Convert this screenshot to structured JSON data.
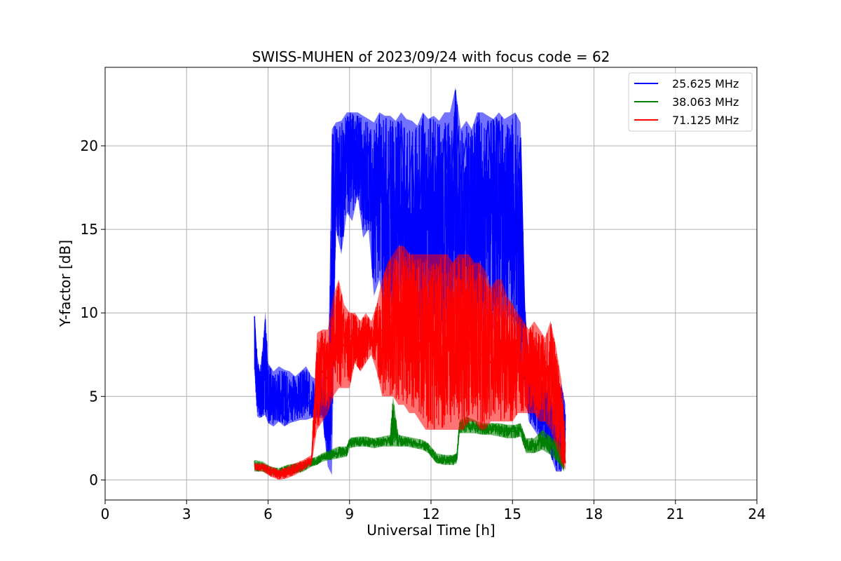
{
  "chart_data": {
    "type": "line",
    "title": "SWISS-MUHEN of 2023/09/24 with focus code = 62",
    "xlabel": "Universal Time [h]",
    "ylabel": "Y-factor [dB]",
    "xlim": [
      0,
      24
    ],
    "ylim": [
      -1.2,
      24.7
    ],
    "xticks": [
      0,
      3,
      6,
      9,
      12,
      15,
      18,
      21,
      24
    ],
    "yticks": [
      0,
      5,
      10,
      15,
      20
    ],
    "grid": true,
    "legend_position": "top-right",
    "series": [
      {
        "name": "25.625 MHz",
        "color": "#0000ff",
        "x": [
          5.5,
          5.6,
          5.7,
          5.8,
          5.9,
          6.0,
          6.2,
          6.4,
          6.6,
          6.8,
          7.0,
          7.2,
          7.4,
          7.6,
          7.8,
          8.0,
          8.2,
          8.35,
          8.5,
          8.7,
          8.9,
          9.1,
          9.3,
          9.5,
          9.7,
          9.9,
          10.1,
          10.3,
          10.5,
          10.7,
          10.9,
          11.1,
          11.3,
          11.5,
          11.7,
          11.9,
          12.1,
          12.3,
          12.5,
          12.7,
          12.9,
          13.1,
          13.3,
          13.5,
          13.7,
          13.9,
          14.1,
          14.3,
          14.5,
          14.7,
          14.9,
          15.1,
          15.3,
          15.45,
          15.6,
          15.8,
          16.0,
          16.2,
          16.4,
          16.6,
          16.8,
          16.95
        ],
        "y": [
          9.8,
          6.5,
          4.2,
          6.0,
          7.5,
          5.0,
          4.0,
          5.8,
          3.6,
          5.5,
          4.2,
          5.2,
          4.4,
          4.8,
          5.0,
          4.6,
          3.8,
          5.2,
          20.5,
          17.5,
          21.5,
          19.0,
          21.8,
          16.0,
          20.0,
          15.0,
          21.0,
          14.0,
          19.0,
          13.0,
          21.5,
          15.5,
          20.0,
          12.5,
          21.5,
          16.0,
          20.5,
          14.5,
          21.0,
          16.5,
          22.5,
          18.0,
          20.5,
          15.0,
          21.0,
          17.0,
          21.5,
          16.0,
          21.5,
          15.0,
          20.5,
          15.0,
          20.5,
          10.0,
          7.0,
          6.0,
          5.0,
          4.5,
          3.8,
          2.5,
          4.5,
          3.0
        ],
        "band_low": [
          6.5,
          3.8,
          3.7,
          3.8,
          3.9,
          3.4,
          3.2,
          3.5,
          3.2,
          3.4,
          3.5,
          3.6,
          3.6,
          3.7,
          3.7,
          3.7,
          0.8,
          0.3,
          15.0,
          13.5,
          16.0,
          15.5,
          17.0,
          14.5,
          15.0,
          11.0,
          12.0,
          10.0,
          11.0,
          9.5,
          12.0,
          10.0,
          11.0,
          8.0,
          9.0,
          9.0,
          10.0,
          8.0,
          9.5,
          9.0,
          10.0,
          10.0,
          9.5,
          9.0,
          9.5,
          9.0,
          10.0,
          9.0,
          10.0,
          9.0,
          10.0,
          9.0,
          6.0,
          5.5,
          3.5,
          3.0,
          2.5,
          2.0,
          1.5,
          0.5,
          0.5,
          1.5
        ],
        "band_high": [
          9.9,
          7.5,
          6.5,
          8.0,
          10.1,
          7.0,
          6.5,
          6.8,
          6.6,
          6.5,
          6.2,
          6.5,
          6.8,
          6.2,
          6.0,
          6.2,
          5.0,
          21.0,
          21.4,
          21.5,
          22.0,
          22.0,
          22.0,
          21.8,
          21.6,
          21.4,
          22.0,
          21.8,
          21.8,
          21.5,
          22.0,
          21.6,
          21.5,
          21.2,
          22.0,
          21.6,
          21.8,
          21.5,
          22.0,
          22.0,
          23.5,
          21.0,
          21.5,
          21.0,
          22.0,
          22.0,
          21.8,
          21.6,
          22.0,
          21.6,
          21.8,
          22.0,
          21.4,
          10.8,
          7.0,
          7.0,
          6.0,
          6.0,
          5.0,
          4.0,
          5.8,
          4.5
        ]
      },
      {
        "name": "38.063 MHz",
        "color": "#008000",
        "x": [
          5.5,
          5.8,
          6.1,
          6.4,
          6.7,
          7.0,
          7.3,
          7.6,
          7.8,
          8.0,
          8.3,
          8.6,
          8.9,
          9.0,
          9.3,
          9.6,
          9.9,
          10.2,
          10.5,
          10.6,
          10.8,
          11.1,
          11.4,
          11.7,
          11.9,
          12.2,
          12.5,
          12.8,
          12.95,
          13.05,
          13.3,
          13.6,
          13.9,
          14.2,
          14.5,
          14.8,
          15.1,
          15.3,
          15.5,
          15.8,
          16.1,
          16.4,
          16.7,
          16.9
        ],
        "y": [
          0.9,
          0.8,
          0.5,
          0.4,
          0.6,
          0.7,
          0.8,
          1.0,
          1.1,
          1.3,
          1.5,
          1.6,
          1.7,
          2.2,
          2.3,
          2.3,
          2.2,
          2.3,
          2.4,
          3.0,
          2.3,
          2.3,
          2.2,
          2.1,
          1.9,
          1.3,
          1.2,
          1.2,
          1.3,
          3.2,
          3.2,
          3.1,
          3.0,
          3.0,
          3.0,
          2.9,
          2.9,
          3.0,
          2.0,
          2.0,
          2.5,
          2.0,
          1.6,
          0.8
        ],
        "band_low": [
          0.5,
          0.5,
          0.3,
          0.2,
          0.3,
          0.4,
          0.5,
          0.8,
          0.9,
          1.1,
          1.2,
          1.3,
          1.4,
          1.9,
          2.0,
          2.0,
          1.9,
          2.0,
          2.0,
          2.0,
          2.0,
          2.0,
          1.9,
          1.8,
          1.6,
          1.0,
          0.9,
          0.9,
          1.0,
          2.8,
          2.8,
          2.8,
          2.7,
          2.7,
          2.6,
          2.5,
          2.5,
          2.6,
          1.6,
          1.6,
          1.8,
          1.5,
          1.0,
          0.5
        ],
        "band_high": [
          1.2,
          1.1,
          0.8,
          0.7,
          0.9,
          1.0,
          1.1,
          1.3,
          1.4,
          1.6,
          1.8,
          2.0,
          2.0,
          2.5,
          2.6,
          2.6,
          2.5,
          2.6,
          2.7,
          5.0,
          2.7,
          2.6,
          2.5,
          2.4,
          2.2,
          1.6,
          1.5,
          1.5,
          1.6,
          3.6,
          3.8,
          3.6,
          3.4,
          3.4,
          3.4,
          3.3,
          3.3,
          3.4,
          2.5,
          2.5,
          3.0,
          2.6,
          2.3,
          1.5
        ]
      },
      {
        "name": "71.125 MHz",
        "color": "#ff0000",
        "x": [
          5.5,
          5.8,
          6.1,
          6.4,
          6.7,
          7.0,
          7.3,
          7.6,
          7.8,
          8.0,
          8.2,
          8.4,
          8.6,
          8.8,
          9.0,
          9.2,
          9.4,
          9.6,
          9.8,
          10.0,
          10.2,
          10.4,
          10.6,
          10.8,
          11.0,
          11.2,
          11.4,
          11.6,
          11.8,
          12.0,
          12.2,
          12.4,
          12.6,
          12.8,
          13.0,
          13.2,
          13.4,
          13.6,
          13.8,
          14.0,
          14.2,
          14.4,
          14.6,
          14.8,
          15.0,
          15.2,
          15.4,
          15.6,
          15.8,
          16.0,
          16.2,
          16.4,
          16.6,
          16.8,
          16.95
        ],
        "y": [
          0.8,
          0.7,
          0.5,
          0.3,
          0.4,
          0.6,
          0.9,
          1.2,
          5.5,
          6.5,
          6.0,
          8.0,
          8.5,
          8.0,
          8.5,
          9.0,
          8.0,
          8.5,
          8.5,
          8.5,
          9.0,
          9.5,
          10.0,
          9.5,
          9.0,
          9.0,
          8.5,
          8.5,
          8.0,
          8.0,
          8.0,
          8.0,
          8.0,
          8.0,
          8.0,
          8.0,
          8.0,
          7.5,
          7.5,
          7.5,
          7.0,
          7.0,
          7.0,
          7.0,
          6.5,
          6.5,
          6.0,
          6.0,
          6.0,
          6.0,
          5.5,
          5.0,
          5.0,
          3.5,
          1.0
        ],
        "band_low": [
          0.6,
          0.5,
          0.2,
          0.0,
          0.1,
          0.3,
          0.6,
          0.9,
          3.0,
          3.5,
          4.0,
          5.0,
          5.5,
          5.5,
          5.5,
          7.0,
          6.5,
          7.0,
          7.5,
          6.5,
          5.0,
          5.0,
          5.0,
          4.5,
          4.5,
          4.0,
          4.0,
          3.5,
          3.0,
          3.0,
          3.0,
          3.0,
          3.0,
          3.0,
          3.0,
          3.0,
          3.5,
          3.5,
          3.0,
          3.0,
          3.5,
          3.5,
          3.5,
          3.5,
          3.5,
          4.0,
          4.0,
          4.0,
          4.0,
          3.5,
          3.5,
          3.0,
          2.0,
          1.0,
          0.6
        ],
        "band_high": [
          1.0,
          1.0,
          0.8,
          0.6,
          0.8,
          1.0,
          1.2,
          1.5,
          8.8,
          9.0,
          9.0,
          11.0,
          12.0,
          10.5,
          10.0,
          10.0,
          9.5,
          10.0,
          9.5,
          10.5,
          12.0,
          13.0,
          13.5,
          14.0,
          14.0,
          13.5,
          13.5,
          13.5,
          13.5,
          13.5,
          13.5,
          13.5,
          13.5,
          13.0,
          13.5,
          13.5,
          13.5,
          13.0,
          13.0,
          12.5,
          11.5,
          12.0,
          12.0,
          11.0,
          10.5,
          10.0,
          9.5,
          9.0,
          9.5,
          9.0,
          8.5,
          9.5,
          8.0,
          6.0,
          2.5
        ]
      }
    ]
  }
}
